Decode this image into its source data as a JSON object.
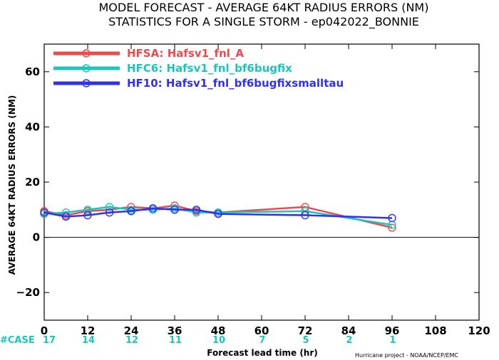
{
  "chart_data": {
    "type": "line",
    "title": "MODEL FORECAST - AVERAGE 64KT RADIUS ERRORS (NM)",
    "subtitle": "STATISTICS FOR A SINGLE STORM - ep042022_BONNIE",
    "xlabel": "Forecast lead time (hr)",
    "ylabel": "AVERAGE 64KT RADIUS ERRORS (NM)",
    "xlim": [
      0,
      120
    ],
    "ylim": [
      -30,
      70
    ],
    "xticks": [
      0,
      12,
      24,
      36,
      48,
      60,
      72,
      84,
      96,
      108,
      120
    ],
    "yticks": [
      -20,
      0,
      20,
      40,
      60
    ],
    "zero_line": true,
    "legend_position": "top-left",
    "series": [
      {
        "name": "HFSA: Hafsv1_fnl_A",
        "color": "#ef4a4a",
        "x": [
          0,
          6,
          12,
          18,
          24,
          30,
          36,
          42,
          48,
          72,
          96
        ],
        "y": [
          9.5,
          8,
          9.5,
          10,
          11,
          10.5,
          11.5,
          9.5,
          9,
          11,
          3.5
        ]
      },
      {
        "name": "HFC6: Hafsv1_fnl_bf6bugfix",
        "color": "#19c6bf",
        "x": [
          0,
          6,
          12,
          18,
          24,
          30,
          36,
          42,
          48,
          72,
          96
        ],
        "y": [
          8.5,
          9,
          10,
          11,
          10,
          10,
          10.5,
          9,
          9,
          9.5,
          4.5
        ]
      },
      {
        "name": "HF10: Hafsv1_fnl_bf6bugfixsmalltau",
        "color": "#3030ee",
        "x": [
          0,
          6,
          12,
          18,
          24,
          30,
          36,
          42,
          48,
          72,
          96
        ],
        "y": [
          9,
          7.5,
          8,
          9,
          9.5,
          10.5,
          10,
          10,
          8.5,
          8,
          7
        ]
      }
    ],
    "case_label": "#CASE",
    "case_counts": [
      {
        "x": 0,
        "n": "17"
      },
      {
        "x": 12,
        "n": "14"
      },
      {
        "x": 24,
        "n": "12"
      },
      {
        "x": 36,
        "n": "11"
      },
      {
        "x": 48,
        "n": "10"
      },
      {
        "x": 60,
        "n": "7"
      },
      {
        "x": 72,
        "n": "5"
      },
      {
        "x": 84,
        "n": "2"
      },
      {
        "x": 96,
        "n": "1"
      }
    ],
    "credit": "Hurricane project - NOAA/NCEP/EMC"
  }
}
